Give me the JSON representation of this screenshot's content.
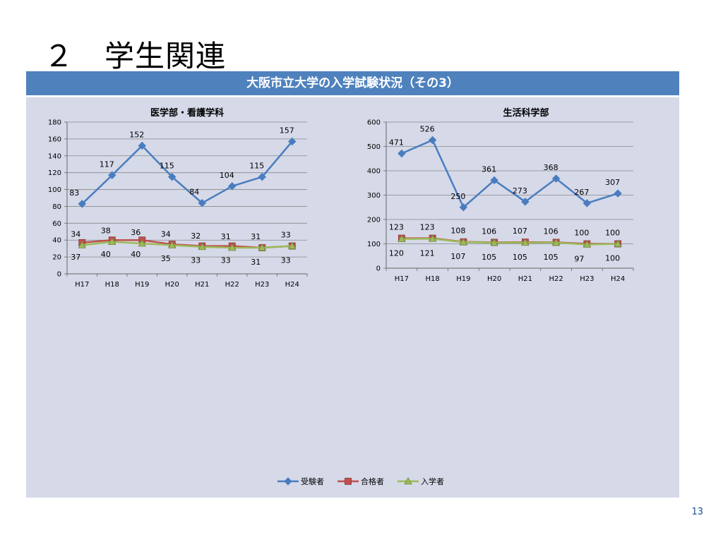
{
  "slide": {
    "title": "２　学生関連",
    "banner": "大阪市立大学の入学試験状況（その3）",
    "page_number": "13"
  },
  "colors": {
    "series": [
      "#4a7dbf",
      "#c0504d",
      "#9bbb59"
    ],
    "panel": "#d5d9e8",
    "banner": "#4f81bd"
  },
  "chart_data": [
    {
      "type": "line",
      "title": "医学部・看護学科",
      "categories": [
        "H17",
        "H18",
        "H19",
        "H20",
        "H21",
        "H22",
        "H23",
        "H24"
      ],
      "ylim": [
        0,
        180
      ],
      "yticks": [
        0,
        20,
        40,
        60,
        80,
        100,
        120,
        140,
        160,
        180
      ],
      "grid": true,
      "series": [
        {
          "name": "受験者",
          "values": [
            83,
            117,
            152,
            115,
            84,
            104,
            115,
            157
          ],
          "marker": "diamond"
        },
        {
          "name": "合格者",
          "values": [
            37,
            40,
            40,
            35,
            33,
            33,
            31,
            33
          ],
          "marker": "square"
        },
        {
          "name": "入学者",
          "values": [
            34,
            38,
            36,
            34,
            32,
            31,
            31,
            33
          ],
          "marker": "triangle"
        }
      ]
    },
    {
      "type": "line",
      "title": "生活科学部",
      "categories": [
        "H17",
        "H18",
        "H19",
        "H20",
        "H21",
        "H22",
        "H23",
        "H24"
      ],
      "ylim": [
        0,
        600
      ],
      "yticks": [
        0,
        100,
        200,
        300,
        400,
        500,
        600
      ],
      "grid": true,
      "series": [
        {
          "name": "受験者",
          "values": [
            471,
            526,
            250,
            361,
            273,
            368,
            267,
            307
          ],
          "marker": "diamond"
        },
        {
          "name": "合格者",
          "values": [
            123,
            123,
            108,
            106,
            107,
            106,
            100,
            100
          ],
          "marker": "square"
        },
        {
          "name": "入学者",
          "values": [
            120,
            121,
            107,
            105,
            105,
            105,
            97,
            100
          ],
          "marker": "triangle"
        }
      ]
    }
  ],
  "legend": {
    "placement": "bottom-center",
    "items": [
      "受験者",
      "合格者",
      "入学者"
    ]
  }
}
